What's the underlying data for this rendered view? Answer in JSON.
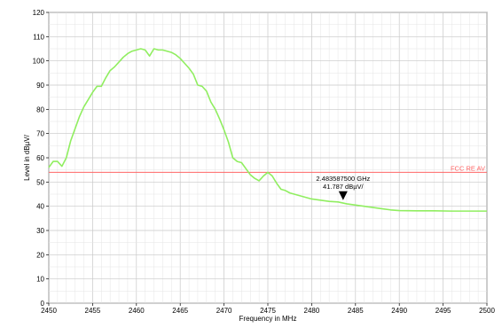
{
  "chart_data": {
    "type": "line",
    "xlabel": "Frequency in MHz",
    "ylabel": "Level in dBµV/",
    "xlim": [
      2450,
      2500
    ],
    "ylim": [
      0,
      120
    ],
    "x_ticks": [
      2450,
      2455,
      2460,
      2465,
      2470,
      2475,
      2480,
      2485,
      2490,
      2495,
      2500
    ],
    "y_ticks": [
      0,
      10,
      20,
      30,
      40,
      50,
      60,
      70,
      80,
      90,
      100,
      110,
      120
    ],
    "grid": true,
    "series": [
      {
        "color": "#90ee60",
        "x": [
          2450,
          2450.5,
          2451,
          2451.5,
          2452,
          2452.5,
          2453,
          2453.5,
          2454,
          2454.5,
          2455,
          2455.5,
          2456,
          2456.5,
          2457,
          2457.5,
          2458,
          2458.5,
          2459,
          2459.5,
          2460,
          2460.5,
          2461,
          2461.5,
          2462,
          2462.5,
          2463,
          2463.5,
          2464,
          2464.5,
          2465,
          2465.5,
          2466,
          2466.5,
          2467,
          2467.5,
          2468,
          2468.5,
          2469,
          2469.5,
          2470,
          2470.5,
          2471,
          2471.5,
          2472,
          2472.5,
          2473,
          2473.5,
          2474,
          2474.5,
          2475,
          2475.5,
          2476,
          2476.5,
          2477,
          2477.5,
          2478,
          2479,
          2480,
          2481,
          2482,
          2483,
          2484,
          2485,
          2486,
          2487,
          2488,
          2489,
          2490,
          2492,
          2494,
          2496,
          2498,
          2500
        ],
        "y": [
          56,
          58.5,
          58.5,
          56.5,
          60,
          67,
          72,
          77,
          81,
          84,
          87,
          89.5,
          89.5,
          93,
          96,
          97.5,
          99.5,
          101.5,
          103,
          104,
          104.5,
          105,
          104.5,
          102,
          105,
          104.5,
          104.5,
          104,
          103.5,
          102.5,
          101,
          99,
          97,
          94.5,
          90,
          89.5,
          87.5,
          83,
          80,
          76,
          71.5,
          66.5,
          60,
          58.5,
          58,
          55.5,
          53,
          51.5,
          50.5,
          52.5,
          54,
          52.5,
          49.5,
          47,
          46.5,
          45.5,
          45,
          44,
          43,
          42.5,
          42,
          41.787,
          41,
          40.5,
          40,
          39.5,
          39,
          38.5,
          38.2,
          38.1,
          38.1,
          38,
          38,
          38
        ]
      }
    ],
    "limit_line": {
      "label": "FCC RE AV",
      "value": 54,
      "color": "#ff6666"
    },
    "marker": {
      "x": 2483.5875,
      "y": 41.787,
      "freq_label": "2.483587500 GHz",
      "level_label": "41.787 dBµV/"
    }
  }
}
